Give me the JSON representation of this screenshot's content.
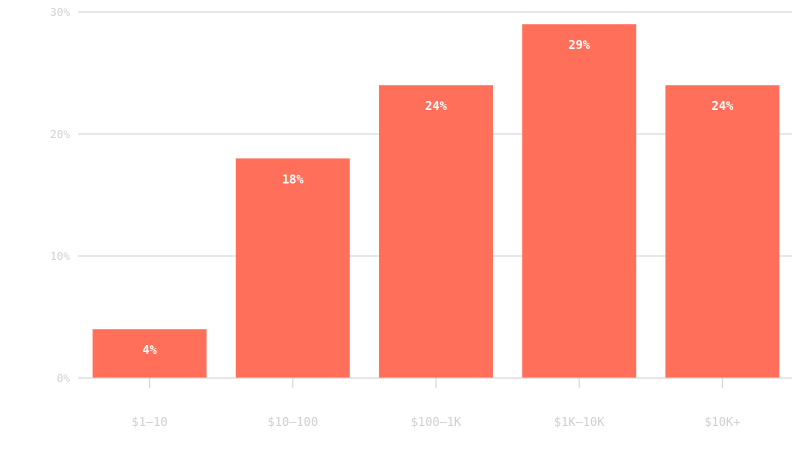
{
  "chart_data": {
    "type": "bar",
    "categories": [
      "$1–10",
      "$10–100",
      "$100–1K",
      "$1K–10K",
      "$10K+"
    ],
    "values": [
      4,
      18,
      24,
      29,
      24
    ],
    "value_labels": [
      "4%",
      "18%",
      "24%",
      "29%",
      "24%"
    ],
    "ylim": [
      0,
      30
    ],
    "yticks": [
      0,
      10,
      20,
      30
    ],
    "ytick_labels": [
      "0%",
      "10%",
      "20%",
      "30%"
    ],
    "grid": true,
    "bar_color": "#ff6f59"
  }
}
